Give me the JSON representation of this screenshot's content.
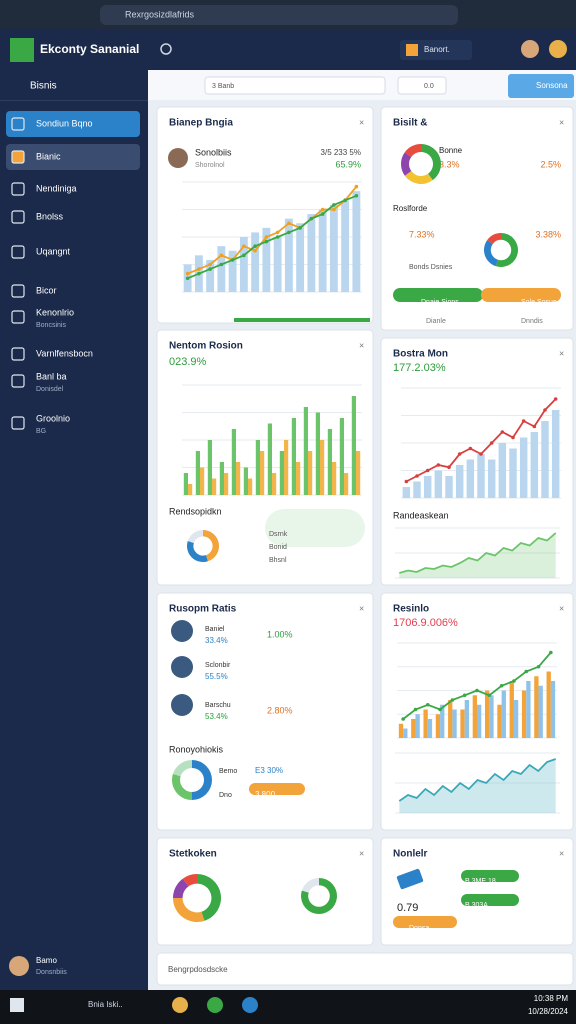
{
  "browser": {
    "url": "Rexrgosizdlafrids"
  },
  "header": {
    "title": "Ekconty Sananial",
    "account": "Banort."
  },
  "sidebar": {
    "title": "Bisnis",
    "items": [
      {
        "label": "Sondiun Bqno"
      },
      {
        "label": "Bianic"
      },
      {
        "label": "Nendiniga"
      },
      {
        "label": "Bnolss"
      },
      {
        "label": "Uqangnt"
      },
      {
        "label": "Bicor"
      },
      {
        "label": "Kenonlrio",
        "sub": "Boncsinis"
      },
      {
        "label": "Varnlfensbocn"
      },
      {
        "label": "Banl ba",
        "sub": "Donisdel"
      },
      {
        "label": "Groolnio",
        "sub": "BG"
      }
    ],
    "user": {
      "name": "Bamo",
      "role": "Donsnbiis"
    }
  },
  "toolbar": {
    "tab": "3 Banb",
    "chip": "0.0",
    "button": "Sonsona"
  },
  "cards": [
    {
      "title": "Bianep Bngia",
      "labels": [
        "Sonolbiis",
        "Shorolnol",
        "3/5 233 5%",
        "65.9%"
      ],
      "charts": [
        {
          "type": "bar-line",
          "ylim": [
            0,
            12
          ],
          "yticks": [
            0,
            3,
            6,
            9,
            12
          ],
          "series": [
            {
              "kind": "bar",
              "color": "#b9d6ee",
              "values": [
                3,
                4,
                3.5,
                5,
                4.5,
                6,
                6.5,
                7,
                6,
                8,
                7.5,
                8.5,
                9,
                9.5,
                10,
                11
              ]
            },
            {
              "kind": "line",
              "color": "#f0a020",
              "values": [
                2,
                2.5,
                3,
                4,
                3.5,
                5,
                4.5,
                6,
                6.5,
                7.5,
                7,
                8,
                9,
                9,
                10,
                11.5
              ]
            },
            {
              "kind": "line",
              "color": "#3aa845",
              "values": [
                1.5,
                2,
                2.5,
                3,
                3.5,
                4,
                5,
                5.5,
                6,
                6.5,
                7,
                8,
                8.5,
                9.5,
                10,
                10.5
              ]
            }
          ]
        }
      ]
    },
    {
      "title": "Bisilt &",
      "labels": [
        "Bonne",
        "3.3%",
        "2.5%",
        "Roslforde",
        "7.33%",
        "3.38%",
        "Bonds Dsnies",
        "Dnaie Sions",
        "Sole Sosue",
        "Dianle",
        "Dnndis"
      ],
      "charts": [
        {
          "type": "donut",
          "colors": [
            "#3aa845",
            "#f2c230",
            "#8e44ad",
            "#e74c3c"
          ],
          "values": [
            40,
            25,
            20,
            15
          ]
        },
        {
          "type": "donut",
          "colors": [
            "#3aa845",
            "#2c82c9",
            "#e74c3c"
          ],
          "values": [
            55,
            30,
            15
          ]
        }
      ]
    },
    {
      "title": "Nentom Rosion",
      "labels": [
        "023.9%",
        "Rendsopidkn",
        "Dsrnk",
        "Bonid",
        "Bhsnl"
      ],
      "charts": [
        {
          "type": "bar-line",
          "ylim": [
            0,
            10
          ],
          "yticks": [
            0,
            2.5,
            5,
            7.5,
            10
          ],
          "series": [
            {
              "kind": "bar",
              "color": "#6cc46a",
              "values": [
                2,
                4,
                5,
                3,
                6,
                2.5,
                5,
                6.5,
                4,
                7,
                8,
                7.5,
                6,
                7,
                9
              ]
            },
            {
              "kind": "bar",
              "color": "#f2b54a",
              "values": [
                1,
                2.5,
                1.5,
                2,
                3,
                1.5,
                4,
                2,
                5,
                3,
                4,
                5,
                3,
                2,
                4
              ]
            }
          ]
        },
        {
          "type": "donut",
          "colors": [
            "#f2a33a",
            "#2c82c9",
            "#dfe6ee"
          ],
          "values": [
            45,
            35,
            20
          ]
        }
      ]
    },
    {
      "title": "Bostra Mon",
      "labels": [
        "177.2.03%",
        "Randeaskean"
      ],
      "charts": [
        {
          "type": "bar-line",
          "ylim": [
            0,
            10
          ],
          "yticks": [
            0,
            2.5,
            5,
            7.5,
            10
          ],
          "series": [
            {
              "kind": "bar",
              "color": "#b9d6ee",
              "values": [
                1,
                1.5,
                2,
                2.5,
                2,
                3,
                3.5,
                4,
                3.5,
                5,
                4.5,
                5.5,
                6,
                7,
                8
              ]
            },
            {
              "kind": "line",
              "color": "#d84040",
              "values": [
                1.5,
                2,
                2.5,
                3,
                2.8,
                4,
                4.5,
                4,
                5,
                6,
                5.5,
                7,
                6.5,
                8,
                9
              ]
            }
          ]
        },
        {
          "type": "area",
          "ylim": [
            0,
            10
          ],
          "yticks": [
            0,
            5,
            10
          ],
          "series": [
            {
              "kind": "area",
              "color": "#6cc46a",
              "values": [
                1,
                1.5,
                1.2,
                2,
                1.8,
                2.5,
                2.2,
                3,
                4,
                3.5,
                5,
                4.5,
                6,
                5.5,
                7,
                6.5,
                8,
                7.5,
                9
              ]
            }
          ]
        }
      ]
    },
    {
      "title": "Rusopm Ratis",
      "labels": [
        "Baniel",
        "33.4%",
        "1.00%",
        "Sclonbir",
        "55.5%",
        "Barschu",
        "53.4%",
        "2.80%",
        "Ronoyohiokis",
        "Bemo",
        "E3 30%",
        "Dno",
        "3.800"
      ],
      "charts": [
        {
          "type": "donut",
          "colors": [
            "#2c82c9",
            "#6cc46a",
            "#b7e0c0"
          ],
          "values": [
            50,
            30,
            20
          ]
        }
      ]
    },
    {
      "title": "Resinlo",
      "labels": [
        "1706.9.006%"
      ],
      "charts": [
        {
          "type": "bar-line",
          "ylim": [
            0,
            10
          ],
          "yticks": [
            0,
            2.5,
            5,
            7.5,
            10
          ],
          "series": [
            {
              "kind": "bar",
              "color": "#f2a33a",
              "values": [
                1.5,
                2,
                3,
                2.5,
                4,
                3,
                4.5,
                5,
                3.5,
                6,
                5,
                6.5,
                7
              ]
            },
            {
              "kind": "bar",
              "color": "#8fc2e8",
              "values": [
                1,
                2.5,
                2,
                3.5,
                3,
                4,
                3.5,
                4.5,
                5,
                4,
                6,
                5.5,
                6
              ]
            },
            {
              "kind": "line",
              "color": "#3aa845",
              "values": [
                2,
                3,
                3.5,
                3,
                4,
                4.5,
                5,
                4.5,
                5.5,
                6,
                7,
                7.5,
                9
              ]
            }
          ]
        },
        {
          "type": "area",
          "ylim": [
            0,
            10
          ],
          "yticks": [
            0,
            5,
            10
          ],
          "series": [
            {
              "kind": "area",
              "color": "#3aa8b8",
              "values": [
                2,
                3,
                2.5,
                4,
                3,
                4.5,
                3.5,
                5,
                4,
                5.5,
                5,
                6.5,
                5.5,
                7,
                6.5,
                8,
                7,
                8.5,
                9
              ]
            }
          ]
        }
      ]
    },
    {
      "title": "Stetkoken",
      "labels": [],
      "charts": [
        {
          "type": "donut",
          "colors": [
            "#3aa845",
            "#f2a33a",
            "#8e44ad",
            "#e74c3c"
          ],
          "values": [
            45,
            30,
            15,
            10
          ]
        },
        {
          "type": "donut",
          "colors": [
            "#3aa845",
            "#dfe6ee"
          ],
          "values": [
            80,
            20
          ]
        }
      ]
    },
    {
      "title": "Nonlelr",
      "labels": [
        "0.79",
        "B 3ME 18",
        "B 303A",
        "Donsa"
      ],
      "charts": []
    }
  ],
  "footer": {
    "title": "Bengrpdosdscke"
  },
  "taskbar": {
    "search": "Bnia Iski..",
    "time": "10:38 PM",
    "date": "10/28/2024"
  }
}
